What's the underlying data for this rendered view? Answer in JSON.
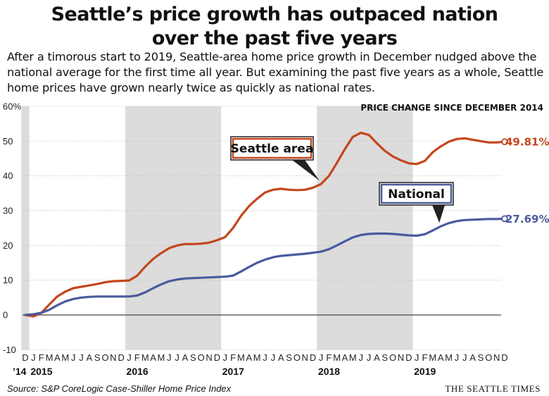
{
  "header": {
    "title_line1": "Seattle’s price growth has outpaced nation",
    "title_line2": "over the past five years",
    "subtitle_line1": "After a timorous start to 2019, Seattle-area home price growth in December nudged above the",
    "subtitle_line2": "national average for the first time all year. But examining the past five years as a whole, Seattle",
    "subtitle_line3": "home prices have grown nearly twice as quickly as national rates."
  },
  "footer": {
    "source": "Source: S&P CoreLogic Case-Shiller Home Price Index",
    "brand": "THE SEATTLE TIMES"
  },
  "colors": {
    "seattle": "#c4461b",
    "national": "#4a5a9c",
    "band": "#dcdcdc",
    "grid": "#bbbbbb"
  },
  "chart_data": {
    "type": "line",
    "title": "PRICE CHANGE SINCE DECEMBER 2014",
    "xlabel": "",
    "ylabel": "",
    "ylim": [
      -10,
      60
    ],
    "y_ticks": [
      "60%",
      "50",
      "40",
      "30",
      "20",
      "10",
      "0",
      "-10"
    ],
    "grid": true,
    "x_months": [
      "D",
      "J",
      "F",
      "M",
      "A",
      "M",
      "J",
      "J",
      "A",
      "S",
      "O",
      "N",
      "D",
      "J",
      "F",
      "M",
      "A",
      "M",
      "J",
      "J",
      "A",
      "S",
      "O",
      "N",
      "D",
      "J",
      "F",
      "M",
      "A",
      "M",
      "J",
      "J",
      "A",
      "S",
      "O",
      "N",
      "D",
      "J",
      "F",
      "M",
      "A",
      "M",
      "J",
      "J",
      "A",
      "S",
      "O",
      "N",
      "D",
      "J",
      "F",
      "M",
      "A",
      "M",
      "J",
      "J",
      "A",
      "S",
      "O",
      "N",
      "D"
    ],
    "year_labels": [
      {
        "index": 0,
        "label": "’14"
      },
      {
        "index": 1,
        "label": "2015"
      },
      {
        "index": 13,
        "label": "2016"
      },
      {
        "index": 25,
        "label": "2017"
      },
      {
        "index": 37,
        "label": "2018"
      },
      {
        "index": 49,
        "label": "2019"
      }
    ],
    "shaded_years": [
      [
        0,
        0
      ],
      [
        13,
        24
      ],
      [
        37,
        48
      ]
    ],
    "series": [
      {
        "name": "Seattle area",
        "end_label": "49.81%",
        "values": [
          0,
          -0.4,
          0.6,
          3.0,
          5.3,
          6.7,
          7.7,
          8.1,
          8.5,
          8.9,
          9.4,
          9.7,
          9.8,
          9.9,
          11.3,
          13.9,
          16.1,
          17.8,
          19.2,
          20.0,
          20.4,
          20.4,
          20.5,
          20.8,
          21.5,
          22.4,
          25.0,
          28.5,
          31.3,
          33.4,
          35.2,
          36.0,
          36.3,
          36.0,
          35.9,
          36.0,
          36.6,
          37.6,
          40.0,
          43.7,
          47.7,
          51.2,
          52.4,
          51.8,
          49.4,
          47.2,
          45.6,
          44.5,
          43.6,
          43.4,
          44.3,
          46.8,
          48.5,
          49.8,
          50.6,
          50.8,
          50.4,
          50.0,
          49.6,
          49.6,
          49.81
        ]
      },
      {
        "name": "National",
        "end_label": "27.69%",
        "values": [
          0,
          0.2,
          0.6,
          1.5,
          2.8,
          3.9,
          4.6,
          5.0,
          5.2,
          5.3,
          5.3,
          5.3,
          5.3,
          5.3,
          5.6,
          6.5,
          7.7,
          8.8,
          9.7,
          10.2,
          10.5,
          10.6,
          10.7,
          10.8,
          10.9,
          11.0,
          11.3,
          12.5,
          13.8,
          15.0,
          15.9,
          16.6,
          17.0,
          17.2,
          17.4,
          17.6,
          17.9,
          18.2,
          18.9,
          20.0,
          21.2,
          22.3,
          23.0,
          23.3,
          23.4,
          23.4,
          23.3,
          23.1,
          22.9,
          22.8,
          23.2,
          24.3,
          25.5,
          26.4,
          27.0,
          27.3,
          27.4,
          27.5,
          27.6,
          27.6,
          27.69
        ]
      }
    ]
  }
}
